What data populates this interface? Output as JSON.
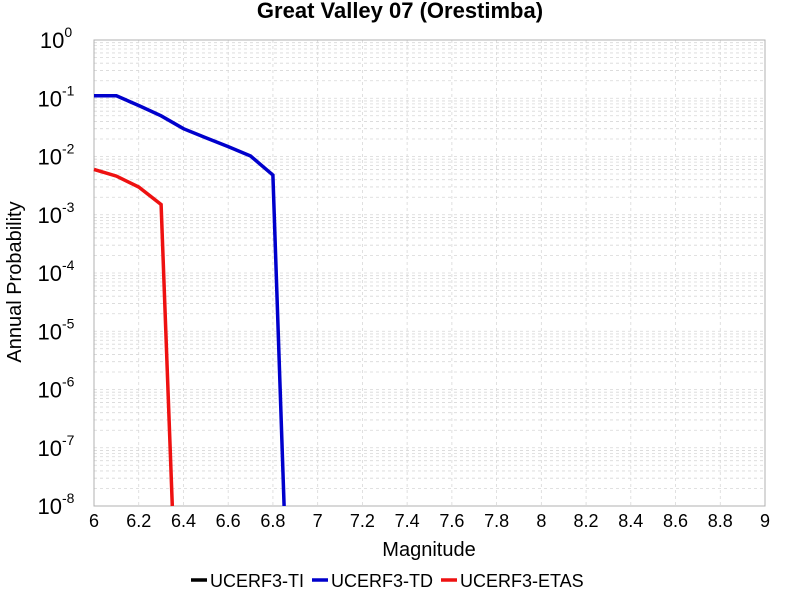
{
  "chart_data": {
    "type": "line",
    "title": "Great Valley 07 (Orestimba)",
    "xlabel": "Magnitude",
    "ylabel": "Annual Probability",
    "xlim": [
      6,
      9
    ],
    "ylim": [
      1e-08,
      1
    ],
    "yscale": "log",
    "grid": true,
    "legend_position": "bottom",
    "x_ticks": [
      "6",
      "6.2",
      "6.4",
      "6.6",
      "6.8",
      "7",
      "7.2",
      "7.4",
      "7.6",
      "7.8",
      "8",
      "8.2",
      "8.4",
      "8.6",
      "8.8",
      "9"
    ],
    "y_ticks": [
      {
        "base": "10",
        "exp": "0",
        "value": 1
      },
      {
        "base": "10",
        "exp": "-1",
        "value": 0.1
      },
      {
        "base": "10",
        "exp": "-2",
        "value": 0.01
      },
      {
        "base": "10",
        "exp": "-3",
        "value": 0.001
      },
      {
        "base": "10",
        "exp": "-4",
        "value": 0.0001
      },
      {
        "base": "10",
        "exp": "-5",
        "value": 1e-05
      },
      {
        "base": "10",
        "exp": "-6",
        "value": 1e-06
      },
      {
        "base": "10",
        "exp": "-7",
        "value": 1e-07
      },
      {
        "base": "10",
        "exp": "-8",
        "value": 1e-08
      }
    ],
    "series": [
      {
        "name": "UCERF3-TI",
        "color": "#000000",
        "points": []
      },
      {
        "name": "UCERF3-TD",
        "color": "#0000cc",
        "points": [
          [
            6.0,
            0.11
          ],
          [
            6.1,
            0.11
          ],
          [
            6.2,
            0.075
          ],
          [
            6.3,
            0.05
          ],
          [
            6.4,
            0.03
          ],
          [
            6.5,
            0.021
          ],
          [
            6.6,
            0.0148
          ],
          [
            6.7,
            0.0102
          ],
          [
            6.8,
            0.0048
          ],
          [
            6.85,
            1e-08
          ]
        ]
      },
      {
        "name": "UCERF3-ETAS",
        "color": "#ee1111",
        "points": [
          [
            6.0,
            0.006
          ],
          [
            6.1,
            0.0046
          ],
          [
            6.2,
            0.003
          ],
          [
            6.3,
            0.0015
          ],
          [
            6.35,
            1e-08
          ]
        ]
      }
    ]
  }
}
